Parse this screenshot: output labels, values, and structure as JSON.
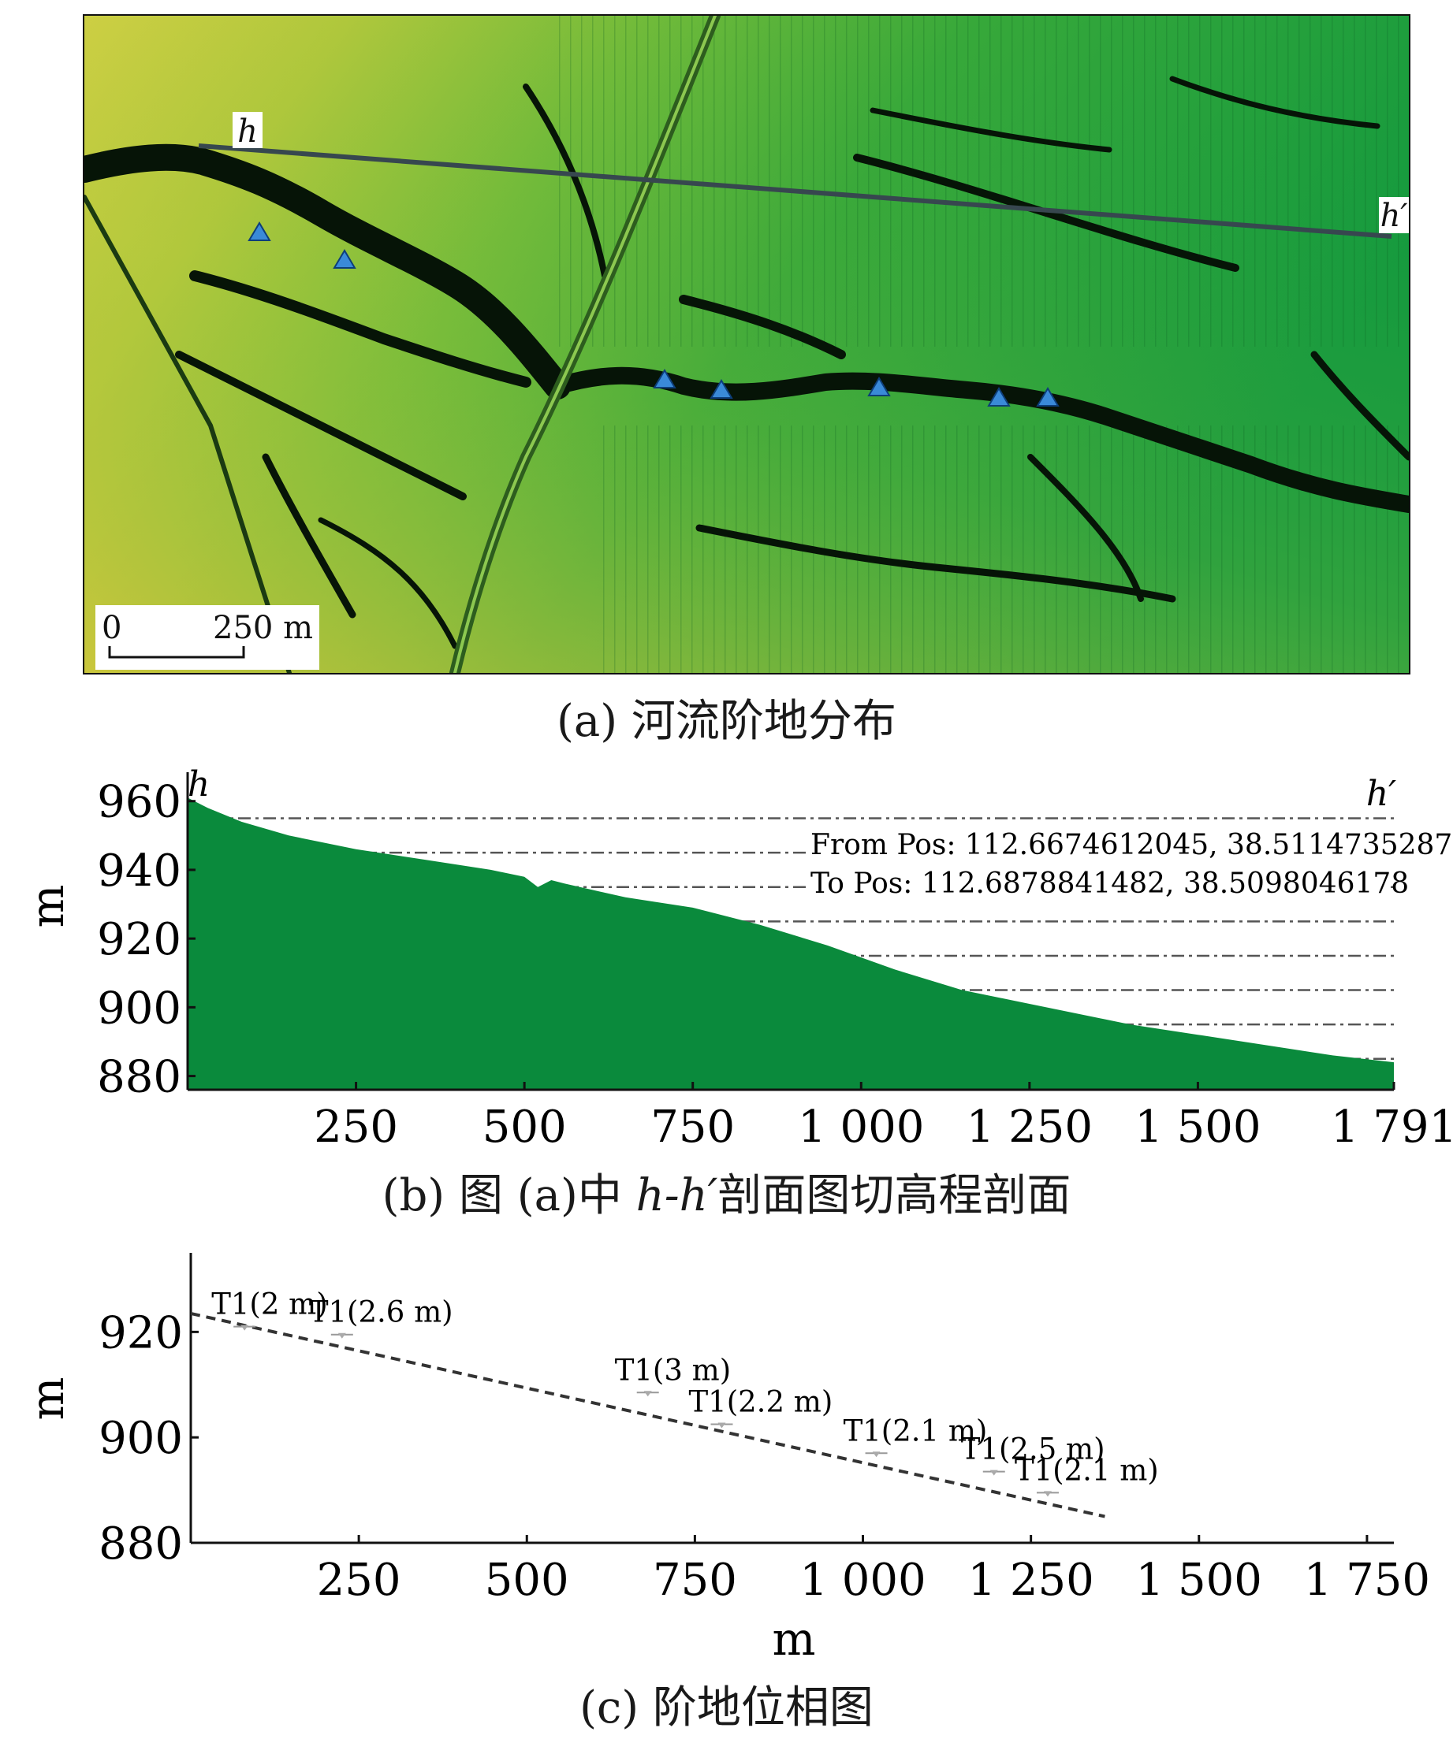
{
  "panel_a": {
    "profile_start_label": "h",
    "profile_end_label": "h′",
    "scale_zero": "0",
    "scale_length": "250 m",
    "terrace_marker_icon": "blue-triangle-icon",
    "caption": "(a) 河流阶地分布",
    "colors": {
      "low": "#0f8a3a",
      "mid": "#5cb83a",
      "high": "#d9d244",
      "channel": "#0a1a0a",
      "marker": "#3a8ad8"
    }
  },
  "panel_b": {
    "caption_prefix": "(b) 图 (a)中 ",
    "caption_italic": "h-h′",
    "caption_suffix": "剖面图切高程剖面"
  },
  "panel_c": {
    "caption": "(c) 阶地位相图"
  },
  "chart_data": [
    {
      "type": "area",
      "ylabel": "m",
      "start_label": "h",
      "end_label": "h′",
      "annotations": [
        "From Pos: 112.6674612045, 38.5114735287",
        "To Pos: 112.6878841482, 38.5098046178"
      ],
      "x_ticks": [
        250,
        500,
        750,
        1000,
        1250,
        1500,
        1791
      ],
      "x_tick_labels": [
        "250",
        "500",
        "750",
        "1 000",
        "1 250",
        "1 500",
        "1 791"
      ],
      "y_ticks": [
        880,
        900,
        920,
        940,
        960
      ],
      "y_tick_labels": [
        "880",
        "900",
        "920",
        "940",
        "960"
      ],
      "xlim": [
        0,
        1791
      ],
      "ylim": [
        876,
        962
      ],
      "grid": "dash-dot horizontal",
      "color": "#0a8a3c",
      "series": [
        {
          "x": [
            0,
            30,
            80,
            150,
            250,
            350,
            450,
            500,
            520,
            540,
            560,
            650,
            750,
            850,
            950,
            1050,
            1150,
            1250,
            1300,
            1400,
            1500,
            1600,
            1700,
            1791
          ],
          "values": [
            961,
            958,
            954,
            950,
            946,
            943,
            940,
            938,
            935,
            937,
            936,
            932,
            929,
            924,
            918,
            911,
            905,
            901,
            899,
            895,
            892,
            889,
            886,
            884
          ]
        }
      ]
    },
    {
      "type": "scatter",
      "ylabel": "m",
      "xlabel": "m",
      "x_ticks": [
        250,
        500,
        750,
        1000,
        1250,
        1500,
        1750
      ],
      "x_tick_labels": [
        "250",
        "500",
        "750",
        "1 000",
        "1 250",
        "1 500",
        "1 750"
      ],
      "y_ticks": [
        880,
        900,
        920
      ],
      "y_tick_labels": [
        "880",
        "900",
        "920"
      ],
      "xlim": [
        0,
        1790
      ],
      "ylim": [
        880,
        935
      ],
      "trend_line": {
        "x": [
          0,
          1360
        ],
        "y": [
          923.5,
          885
        ]
      },
      "points": [
        {
          "label": "T1(2 m)",
          "x": 80,
          "y": 921
        },
        {
          "label": "T1(2.6 m)",
          "x": 225,
          "y": 919.5
        },
        {
          "label": "T1(3 m)",
          "x": 680,
          "y": 908.5
        },
        {
          "label": "T1(2.2 m)",
          "x": 790,
          "y": 902.5
        },
        {
          "label": "T1(2.1 m)",
          "x": 1020,
          "y": 897
        },
        {
          "label": "T1(2.5 m)",
          "x": 1195,
          "y": 893.5
        },
        {
          "label": "T1(2.1 m)",
          "x": 1275,
          "y": 889.5
        }
      ]
    }
  ]
}
